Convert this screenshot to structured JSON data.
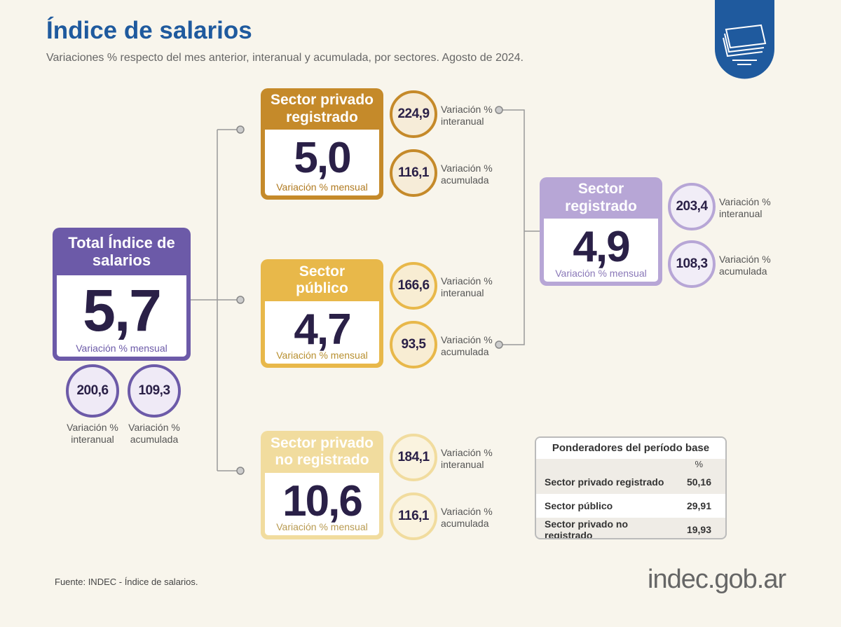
{
  "header": {
    "title": "Índice de salarios",
    "subtitle": "Variaciones % respecto del mes anterior, interanual y acumulada, por sectores. Agosto de 2024."
  },
  "cards": [
    {
      "title": "Total Índice de salarios",
      "value": "5,7",
      "value_label": "Variación % mensual",
      "interanual": "200,6",
      "interanual_label": "Variación % interanual",
      "acumulada": "109,3",
      "acumulada_label": "Variación % acumulada"
    },
    {
      "title": "Sector privado registrado",
      "value": "5,0",
      "value_label": "Variación % mensual",
      "interanual": "224,9",
      "interanual_label": "Variación % interanual",
      "acumulada": "116,1",
      "acumulada_label": "Variación % acumulada"
    },
    {
      "title": "Sector público",
      "value": "4,7",
      "value_label": "Variación % mensual",
      "interanual": "166,6",
      "interanual_label": "Variación % interanual",
      "acumulada": "93,5",
      "acumulada_label": "Variación % acumulada"
    },
    {
      "title": "Sector privado no registrado",
      "value": "10,6",
      "value_label": "Variación % mensual",
      "interanual": "184,1",
      "interanual_label": "Variación % interanual",
      "acumulada": "116,1",
      "acumulada_label": "Variación % acumulada"
    },
    {
      "title": "Sector registrado",
      "value": "4,9",
      "value_label": "Variación % mensual",
      "interanual": "203,4",
      "interanual_label": "Variación % interanual",
      "acumulada": "108,3",
      "acumulada_label": "Variación % acumulada"
    }
  ],
  "table": {
    "title": "Ponderadores del período base",
    "unit": "%",
    "rows": [
      [
        "Sector privado registrado",
        "50,16"
      ],
      [
        "Sector público",
        "29,91"
      ],
      [
        "Sector privado no registrado",
        "19,93"
      ]
    ]
  },
  "footer": {
    "source": "Fuente: INDEC - Índice de salarios.",
    "logo": "indec.gob.ar"
  }
}
